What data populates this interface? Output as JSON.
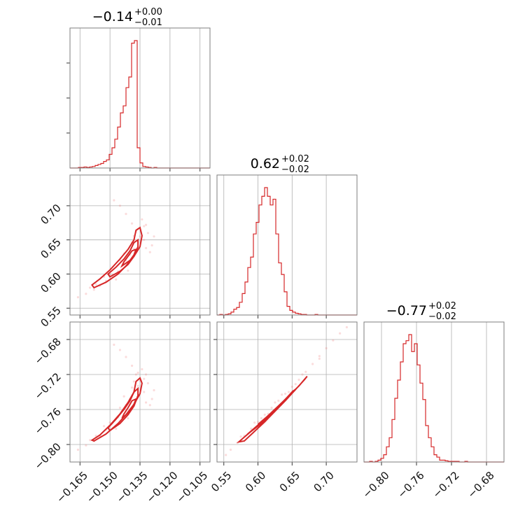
{
  "chart_data": {
    "type": "corner",
    "color": "#d62728",
    "grid": true,
    "parameters": [
      {
        "title": "−0.14",
        "upper": "+0.00",
        "lower": "−0.01",
        "range": [
          -0.17,
          -0.1
        ],
        "ticks": [
          -0.165,
          -0.15,
          -0.135,
          -0.12,
          -0.105
        ],
        "tick_labels": [
          "−0.165",
          "−0.150",
          "−0.135",
          "−0.120",
          "−0.105"
        ]
      },
      {
        "title": "0.62",
        "upper": "+0.02",
        "lower": "−0.02",
        "range": [
          0.54,
          0.745
        ],
        "ticks": [
          0.55,
          0.6,
          0.65,
          0.7
        ],
        "tick_labels": [
          "0.55",
          "0.60",
          "0.65",
          "0.70"
        ]
      },
      {
        "title": "−0.77",
        "upper": "+0.02",
        "lower": "−0.02",
        "range": [
          -0.82,
          -0.66
        ],
        "ticks": [
          -0.8,
          -0.76,
          -0.72,
          -0.68
        ],
        "tick_labels": [
          "−0.80",
          "−0.76",
          "−0.72",
          "−0.68"
        ]
      }
    ],
    "histograms": [
      {
        "param": 0,
        "bin_start": -0.17,
        "bin_width": 0.0014,
        "counts": [
          0,
          0,
          0,
          1,
          1,
          2,
          1,
          2,
          3,
          5,
          7,
          9,
          13,
          16,
          27,
          40,
          57,
          81,
          109,
          123,
          159,
          180,
          247,
          252,
          40,
          10,
          3,
          2,
          1,
          0,
          1,
          0,
          0,
          0,
          0,
          0,
          0,
          0,
          0,
          0,
          0,
          0,
          0,
          0,
          0,
          0,
          0,
          0,
          0,
          0
        ]
      },
      {
        "param": 1,
        "bin_start": 0.54,
        "bin_width": 0.0041,
        "counts": [
          0,
          1,
          0,
          1,
          2,
          5,
          10,
          13,
          22,
          37,
          57,
          82,
          100,
          140,
          160,
          190,
          205,
          220,
          205,
          190,
          200,
          140,
          90,
          70,
          40,
          15,
          8,
          5,
          3,
          2,
          1,
          1,
          0,
          0,
          0,
          1,
          0,
          0,
          0,
          0,
          0,
          0,
          0,
          0,
          0,
          0,
          0,
          0,
          0,
          0
        ]
      },
      {
        "param": 2,
        "bin_start": -0.82,
        "bin_width": 0.0032,
        "counts": [
          0,
          0,
          1,
          0,
          1,
          3,
          6,
          12,
          25,
          40,
          70,
          105,
          135,
          165,
          195,
          200,
          210,
          182,
          195,
          160,
          130,
          103,
          60,
          40,
          25,
          12,
          8,
          3,
          3,
          2,
          1,
          1,
          1,
          1,
          0,
          0,
          1,
          0,
          0,
          0,
          0,
          0,
          0,
          0,
          0,
          0,
          0,
          0,
          0,
          0
        ]
      }
    ],
    "pair_points": {
      "p1_vs_p0": [
        [
          -0.166,
          0.566
        ],
        [
          -0.162,
          0.571
        ],
        [
          -0.158,
          0.577
        ],
        [
          -0.155,
          0.583
        ],
        [
          -0.152,
          0.59
        ],
        [
          -0.149,
          0.597
        ],
        [
          -0.146,
          0.604
        ],
        [
          -0.144,
          0.612
        ],
        [
          -0.142,
          0.62
        ],
        [
          -0.14,
          0.628
        ],
        [
          -0.138,
          0.637
        ],
        [
          -0.136,
          0.646
        ],
        [
          -0.135,
          0.655
        ],
        [
          -0.137,
          0.662
        ],
        [
          -0.139,
          0.674
        ],
        [
          -0.142,
          0.688
        ],
        [
          -0.145,
          0.7
        ],
        [
          -0.148,
          0.708
        ],
        [
          -0.133,
          0.65
        ],
        [
          -0.131,
          0.66
        ],
        [
          -0.129,
          0.642
        ],
        [
          -0.132,
          0.672
        ],
        [
          -0.134,
          0.68
        ],
        [
          -0.13,
          0.632
        ],
        [
          -0.141,
          0.605
        ],
        [
          -0.147,
          0.592
        ],
        [
          -0.15,
          0.6
        ],
        [
          -0.153,
          0.596
        ],
        [
          -0.143,
          0.63
        ],
        [
          -0.139,
          0.646
        ],
        [
          -0.136,
          0.666
        ],
        [
          -0.138,
          0.656
        ],
        [
          -0.132,
          0.638
        ],
        [
          -0.128,
          0.655
        ],
        [
          -0.157,
          0.585
        ],
        [
          -0.16,
          0.58
        ],
        [
          -0.145,
          0.62
        ],
        [
          -0.133,
          0.67
        ]
      ],
      "p2_vs_p0": [
        [
          -0.166,
          -0.806
        ],
        [
          -0.162,
          -0.801
        ],
        [
          -0.158,
          -0.796
        ],
        [
          -0.155,
          -0.79
        ],
        [
          -0.152,
          -0.783
        ],
        [
          -0.149,
          -0.776
        ],
        [
          -0.146,
          -0.769
        ],
        [
          -0.144,
          -0.762
        ],
        [
          -0.142,
          -0.755
        ],
        [
          -0.14,
          -0.748
        ],
        [
          -0.138,
          -0.74
        ],
        [
          -0.136,
          -0.733
        ],
        [
          -0.135,
          -0.727
        ],
        [
          -0.137,
          -0.72
        ],
        [
          -0.139,
          -0.71
        ],
        [
          -0.142,
          -0.7
        ],
        [
          -0.145,
          -0.692
        ],
        [
          -0.148,
          -0.686
        ],
        [
          -0.133,
          -0.74
        ],
        [
          -0.131,
          -0.73
        ],
        [
          -0.129,
          -0.748
        ],
        [
          -0.132,
          -0.72
        ],
        [
          -0.134,
          -0.714
        ],
        [
          -0.13,
          -0.755
        ],
        [
          -0.141,
          -0.77
        ],
        [
          -0.147,
          -0.782
        ],
        [
          -0.15,
          -0.775
        ],
        [
          -0.153,
          -0.779
        ],
        [
          -0.143,
          -0.745
        ],
        [
          -0.139,
          -0.735
        ],
        [
          -0.136,
          -0.718
        ],
        [
          -0.138,
          -0.728
        ],
        [
          -0.132,
          -0.752
        ],
        [
          -0.128,
          -0.738
        ],
        [
          -0.157,
          -0.79
        ],
        [
          -0.16,
          -0.795
        ],
        [
          -0.145,
          -0.758
        ],
        [
          -0.133,
          -0.725
        ]
      ],
      "p2_vs_p1": [
        [
          0.553,
          -0.812
        ],
        [
          0.56,
          -0.806
        ],
        [
          0.57,
          -0.798
        ],
        [
          0.58,
          -0.79
        ],
        [
          0.59,
          -0.782
        ],
        [
          0.6,
          -0.774
        ],
        [
          0.61,
          -0.766
        ],
        [
          0.62,
          -0.758
        ],
        [
          0.63,
          -0.75
        ],
        [
          0.64,
          -0.742
        ],
        [
          0.65,
          -0.734
        ],
        [
          0.66,
          -0.726
        ],
        [
          0.67,
          -0.717
        ],
        [
          0.68,
          -0.708
        ],
        [
          0.69,
          -0.699
        ],
        [
          0.7,
          -0.69
        ],
        [
          0.71,
          -0.681
        ],
        [
          0.72,
          -0.673
        ],
        [
          0.73,
          -0.666
        ],
        [
          0.575,
          -0.791
        ],
        [
          0.595,
          -0.775
        ],
        [
          0.615,
          -0.765
        ],
        [
          0.635,
          -0.743
        ],
        [
          0.655,
          -0.731
        ],
        [
          0.605,
          -0.77
        ],
        [
          0.625,
          -0.752
        ],
        [
          0.645,
          -0.74
        ],
        [
          0.665,
          -0.72
        ],
        [
          0.585,
          -0.788
        ],
        [
          0.69,
          -0.702
        ]
      ]
    },
    "contours": {
      "p1_vs_p0": [
        [
          [
            -0.158,
            0.58
          ],
          [
            -0.152,
            0.588
          ],
          [
            -0.146,
            0.6
          ],
          [
            -0.142,
            0.612
          ],
          [
            -0.138,
            0.626
          ],
          [
            -0.135,
            0.64
          ],
          [
            -0.134,
            0.656
          ],
          [
            -0.135,
            0.668
          ],
          [
            -0.137,
            0.664
          ],
          [
            -0.138,
            0.65
          ],
          [
            -0.141,
            0.636
          ],
          [
            -0.145,
            0.622
          ],
          [
            -0.15,
            0.606
          ],
          [
            -0.155,
            0.593
          ],
          [
            -0.159,
            0.584
          ],
          [
            -0.158,
            0.58
          ]
        ],
        [
          [
            -0.15,
            0.596
          ],
          [
            -0.145,
            0.604
          ],
          [
            -0.141,
            0.614
          ],
          [
            -0.138,
            0.626
          ],
          [
            -0.136,
            0.64
          ],
          [
            -0.136,
            0.65
          ],
          [
            -0.138,
            0.646
          ],
          [
            -0.14,
            0.634
          ],
          [
            -0.143,
            0.622
          ],
          [
            -0.147,
            0.61
          ],
          [
            -0.151,
            0.6
          ],
          [
            -0.15,
            0.596
          ]
        ],
        [
          [
            -0.144,
            0.612
          ],
          [
            -0.14,
            0.62
          ],
          [
            -0.138,
            0.628
          ],
          [
            -0.137,
            0.636
          ],
          [
            -0.139,
            0.634
          ],
          [
            -0.141,
            0.626
          ],
          [
            -0.143,
            0.618
          ],
          [
            -0.144,
            0.612
          ]
        ]
      ],
      "p2_vs_p0": [
        [
          [
            -0.158,
            -0.796
          ],
          [
            -0.152,
            -0.788
          ],
          [
            -0.146,
            -0.776
          ],
          [
            -0.142,
            -0.766
          ],
          [
            -0.138,
            -0.754
          ],
          [
            -0.135,
            -0.742
          ],
          [
            -0.134,
            -0.73
          ],
          [
            -0.135,
            -0.724
          ],
          [
            -0.137,
            -0.728
          ],
          [
            -0.138,
            -0.74
          ],
          [
            -0.141,
            -0.752
          ],
          [
            -0.145,
            -0.765
          ],
          [
            -0.15,
            -0.778
          ],
          [
            -0.155,
            -0.789
          ],
          [
            -0.159,
            -0.795
          ],
          [
            -0.158,
            -0.796
          ]
        ],
        [
          [
            -0.15,
            -0.784
          ],
          [
            -0.145,
            -0.776
          ],
          [
            -0.141,
            -0.766
          ],
          [
            -0.138,
            -0.756
          ],
          [
            -0.136,
            -0.744
          ],
          [
            -0.136,
            -0.736
          ],
          [
            -0.138,
            -0.74
          ],
          [
            -0.14,
            -0.75
          ],
          [
            -0.143,
            -0.76
          ],
          [
            -0.147,
            -0.771
          ],
          [
            -0.151,
            -0.781
          ],
          [
            -0.15,
            -0.784
          ]
        ],
        [
          [
            -0.144,
            -0.77
          ],
          [
            -0.14,
            -0.762
          ],
          [
            -0.138,
            -0.754
          ],
          [
            -0.137,
            -0.748
          ],
          [
            -0.139,
            -0.75
          ],
          [
            -0.141,
            -0.758
          ],
          [
            -0.143,
            -0.765
          ],
          [
            -0.144,
            -0.77
          ]
        ]
      ],
      "p2_vs_p1": [
        [
          [
            0.572,
            -0.797
          ],
          [
            0.6,
            -0.778
          ],
          [
            0.63,
            -0.756
          ],
          [
            0.66,
            -0.733
          ],
          [
            0.672,
            -0.722
          ],
          [
            0.668,
            -0.726
          ],
          [
            0.64,
            -0.75
          ],
          [
            0.61,
            -0.774
          ],
          [
            0.58,
            -0.796
          ],
          [
            0.572,
            -0.797
          ]
        ],
        [
          [
            0.585,
            -0.788
          ],
          [
            0.61,
            -0.771
          ],
          [
            0.635,
            -0.753
          ],
          [
            0.655,
            -0.737
          ],
          [
            0.651,
            -0.739
          ],
          [
            0.63,
            -0.757
          ],
          [
            0.605,
            -0.776
          ],
          [
            0.585,
            -0.788
          ]
        ],
        [
          [
            0.6,
            -0.777
          ],
          [
            0.62,
            -0.764
          ],
          [
            0.638,
            -0.751
          ],
          [
            0.634,
            -0.753
          ],
          [
            0.615,
            -0.767
          ],
          [
            0.6,
            -0.777
          ]
        ]
      ]
    }
  }
}
